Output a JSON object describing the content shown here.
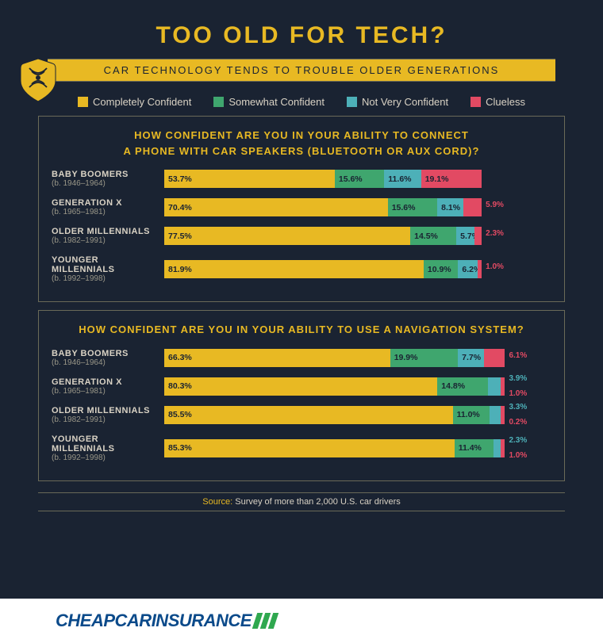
{
  "title": "TOO OLD FOR TECH?",
  "subtitle": "CAR TECHNOLOGY TENDS TO TROUBLE OLDER GENERATIONS",
  "colors": {
    "background": "#1a2332",
    "title": "#e8b923",
    "subtitle_text": "#1a2332",
    "subtitle_bg": "#e8b923",
    "border": "#6a6a58",
    "body_text": "#d9d2c4",
    "question": "#e8b923",
    "completely": "#e8b923",
    "somewhat": "#3fa66e",
    "notvery": "#4db0b8",
    "clueless": "#e24a63",
    "stripe": "#2fa84f",
    "brand": "#0b4a8a"
  },
  "legend": [
    {
      "label": "Completely Confident",
      "key": "completely"
    },
    {
      "label": "Somewhat Confident",
      "key": "somewhat"
    },
    {
      "label": "Not Very Confident",
      "key": "notvery"
    },
    {
      "label": "Clueless",
      "key": "clueless"
    }
  ],
  "sections": [
    {
      "question_l1": "HOW CONFIDENT ARE YOU IN YOUR ABILITY TO CONNECT",
      "question_l2": "A PHONE WITH CAR SPEAKERS (BLUETOOTH OR AUX CORD)?",
      "bar_scale": 0.82,
      "rows": [
        {
          "name": "BABY BOOMERS",
          "years": "(b. 1946–1964)",
          "v": [
            53.7,
            15.6,
            11.6,
            19.1
          ],
          "ext": []
        },
        {
          "name": "GENERATION X",
          "years": "(b. 1965–1981)",
          "v": [
            70.4,
            15.6,
            8.1,
            5.9
          ],
          "ext": [
            3
          ],
          "ext_colors": [
            "clueless"
          ]
        },
        {
          "name": "OLDER MILLENNIALS",
          "years": "(b. 1982–1991)",
          "v": [
            77.5,
            14.5,
            5.7,
            2.3
          ],
          "ext": [
            3
          ],
          "ext_colors": [
            "clueless"
          ]
        },
        {
          "name": "YOUNGER MILLENNIALS",
          "years": "(b. 1992–1998)",
          "v": [
            81.9,
            10.9,
            6.2,
            1.0
          ],
          "ext": [
            3
          ],
          "ext_colors": [
            "clueless"
          ]
        }
      ]
    },
    {
      "question_l1": "HOW CONFIDENT ARE YOU IN YOUR ABILITY TO USE A NAVIGATION SYSTEM?",
      "question_l2": "",
      "bar_scale": 0.88,
      "rows": [
        {
          "name": "BABY BOOMERS",
          "years": "(b. 1946–1964)",
          "v": [
            66.3,
            19.9,
            7.7,
            6.1
          ],
          "ext": [
            3
          ],
          "ext_colors": [
            "clueless"
          ]
        },
        {
          "name": "GENERATION X",
          "years": "(b. 1965–1981)",
          "v": [
            80.3,
            14.8,
            3.9,
            1.0
          ],
          "ext": [
            2,
            3
          ],
          "ext_colors": [
            "notvery",
            "clueless"
          ]
        },
        {
          "name": "OLDER MILLENNIALS",
          "years": "(b. 1982–1991)",
          "v": [
            85.5,
            11.0,
            3.3,
            0.2
          ],
          "ext": [
            2,
            3
          ],
          "ext_colors": [
            "notvery",
            "clueless"
          ]
        },
        {
          "name": "YOUNGER MILLENNIALS",
          "years": "(b. 1992–1998)",
          "v": [
            85.3,
            11.4,
            2.3,
            1.0
          ],
          "ext": [
            2,
            3
          ],
          "ext_colors": [
            "notvery",
            "clueless"
          ]
        }
      ]
    }
  ],
  "source_label": "Source:",
  "source_text": "Survey of more than 2,000 U.S. car drivers",
  "brand_p1": "CHEAP",
  "brand_p2": "CAR",
  "brand_p3": "INSURANCE"
}
